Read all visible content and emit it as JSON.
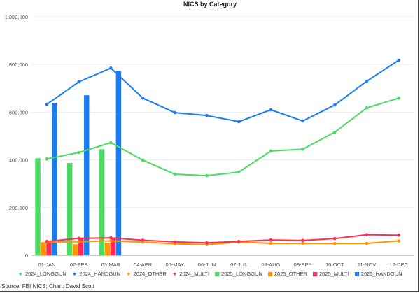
{
  "chart_data": {
    "type": "bar+line",
    "title": "NICS by Category",
    "xlabel": "",
    "ylabel": "",
    "ylim": [
      0,
      1000000
    ],
    "yticks": [
      "0",
      "200,000",
      "400,000",
      "600,000",
      "800,000",
      "1,000,000"
    ],
    "ytick_values": [
      0,
      200000,
      400000,
      600000,
      800000,
      1000000
    ],
    "grid": true,
    "legend_position": "bottom",
    "categories": [
      "01-JAN",
      "02-FEB",
      "03-MAR",
      "04-APR",
      "05-MAY",
      "06-JUN",
      "07-JUL",
      "08-AUG",
      "09-SEP",
      "10-OCT",
      "11-NOV",
      "12-DEC"
    ],
    "line_series": [
      {
        "name": "2024_LONGGUN",
        "color": "#4cd964",
        "values": [
          404000,
          431000,
          472000,
          399000,
          340000,
          334000,
          349000,
          437000,
          445000,
          516000,
          618000,
          659000
        ]
      },
      {
        "name": "2024_HANDGUN",
        "color": "#1a7cf0",
        "values": [
          633000,
          727000,
          785000,
          659000,
          598000,
          586000,
          560000,
          610000,
          563000,
          630000,
          730000,
          818000
        ]
      },
      {
        "name": "2024_OTHER",
        "color": "#ff9500",
        "values": [
          55000,
          57000,
          60000,
          55000,
          48000,
          45000,
          55000,
          50000,
          50000,
          49000,
          50000,
          60000
        ]
      },
      {
        "name": "2024_MULTI",
        "color": "#ff2d55",
        "values": [
          58000,
          71000,
          73000,
          63000,
          56000,
          52000,
          58000,
          64000,
          62000,
          70000,
          86000,
          84000
        ]
      }
    ],
    "bar_series": [
      {
        "name": "2025_LONGGUN",
        "color": "#4cd964",
        "values": [
          407000,
          387000,
          445000
        ]
      },
      {
        "name": "2025_OTHER",
        "color": "#ff9500",
        "values": [
          55000,
          46000,
          52000
        ]
      },
      {
        "name": "2025_MULTI",
        "color": "#ff2d55",
        "values": [
          60000,
          70000,
          70000
        ]
      },
      {
        "name": "2025_HANDGUN",
        "color": "#1a7cf0",
        "values": [
          639000,
          671000,
          773000
        ]
      }
    ]
  },
  "source": "Source: FBI NICS; Chart: David Scott"
}
